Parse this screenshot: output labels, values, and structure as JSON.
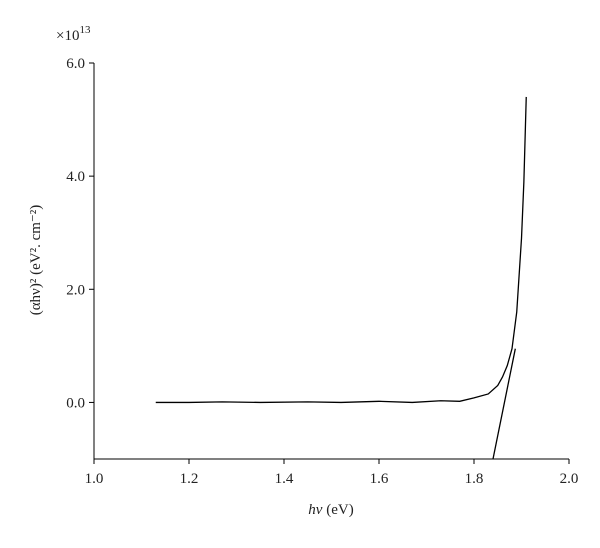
{
  "chart_data": {
    "type": "line",
    "y_multiplier": {
      "base": "×10",
      "exponent": "13"
    },
    "x_label": {
      "italic": "hν",
      "rest": " (eV)"
    },
    "y_label": "(αhν)² (eV². cm⁻²)",
    "xlim": [
      1.0,
      2.0
    ],
    "xticks": [
      {
        "value": 1.0,
        "label": "1.0"
      },
      1.2,
      1.4,
      1.6,
      1.8,
      {
        "value": 2.0,
        "label": "2.0"
      }
    ],
    "ylim": [
      -1,
      6
    ],
    "yticks": [
      {
        "value": 0,
        "label": "0.0"
      },
      {
        "value": 2,
        "label": "2.0"
      },
      {
        "value": 4,
        "label": "4.0"
      },
      {
        "value": 6,
        "label": "6.0"
      }
    ],
    "color": "#000000",
    "series": [
      {
        "x": [
          1.13,
          1.2,
          1.27,
          1.35,
          1.45,
          1.52,
          1.6,
          1.67,
          1.73,
          1.77,
          1.8,
          1.83,
          1.85,
          1.86,
          1.87,
          1.88,
          1.89,
          1.9,
          1.905,
          1.91
        ],
        "values": [
          0,
          0,
          0.01,
          0,
          0.01,
          0,
          0.02,
          0,
          0.03,
          0.02,
          0.08,
          0.15,
          0.3,
          0.45,
          0.65,
          0.95,
          1.6,
          2.9,
          3.9,
          5.4
        ]
      },
      {
        "x": [
          1.84,
          1.887
        ],
        "values": [
          -1,
          0.95
        ]
      }
    ]
  }
}
